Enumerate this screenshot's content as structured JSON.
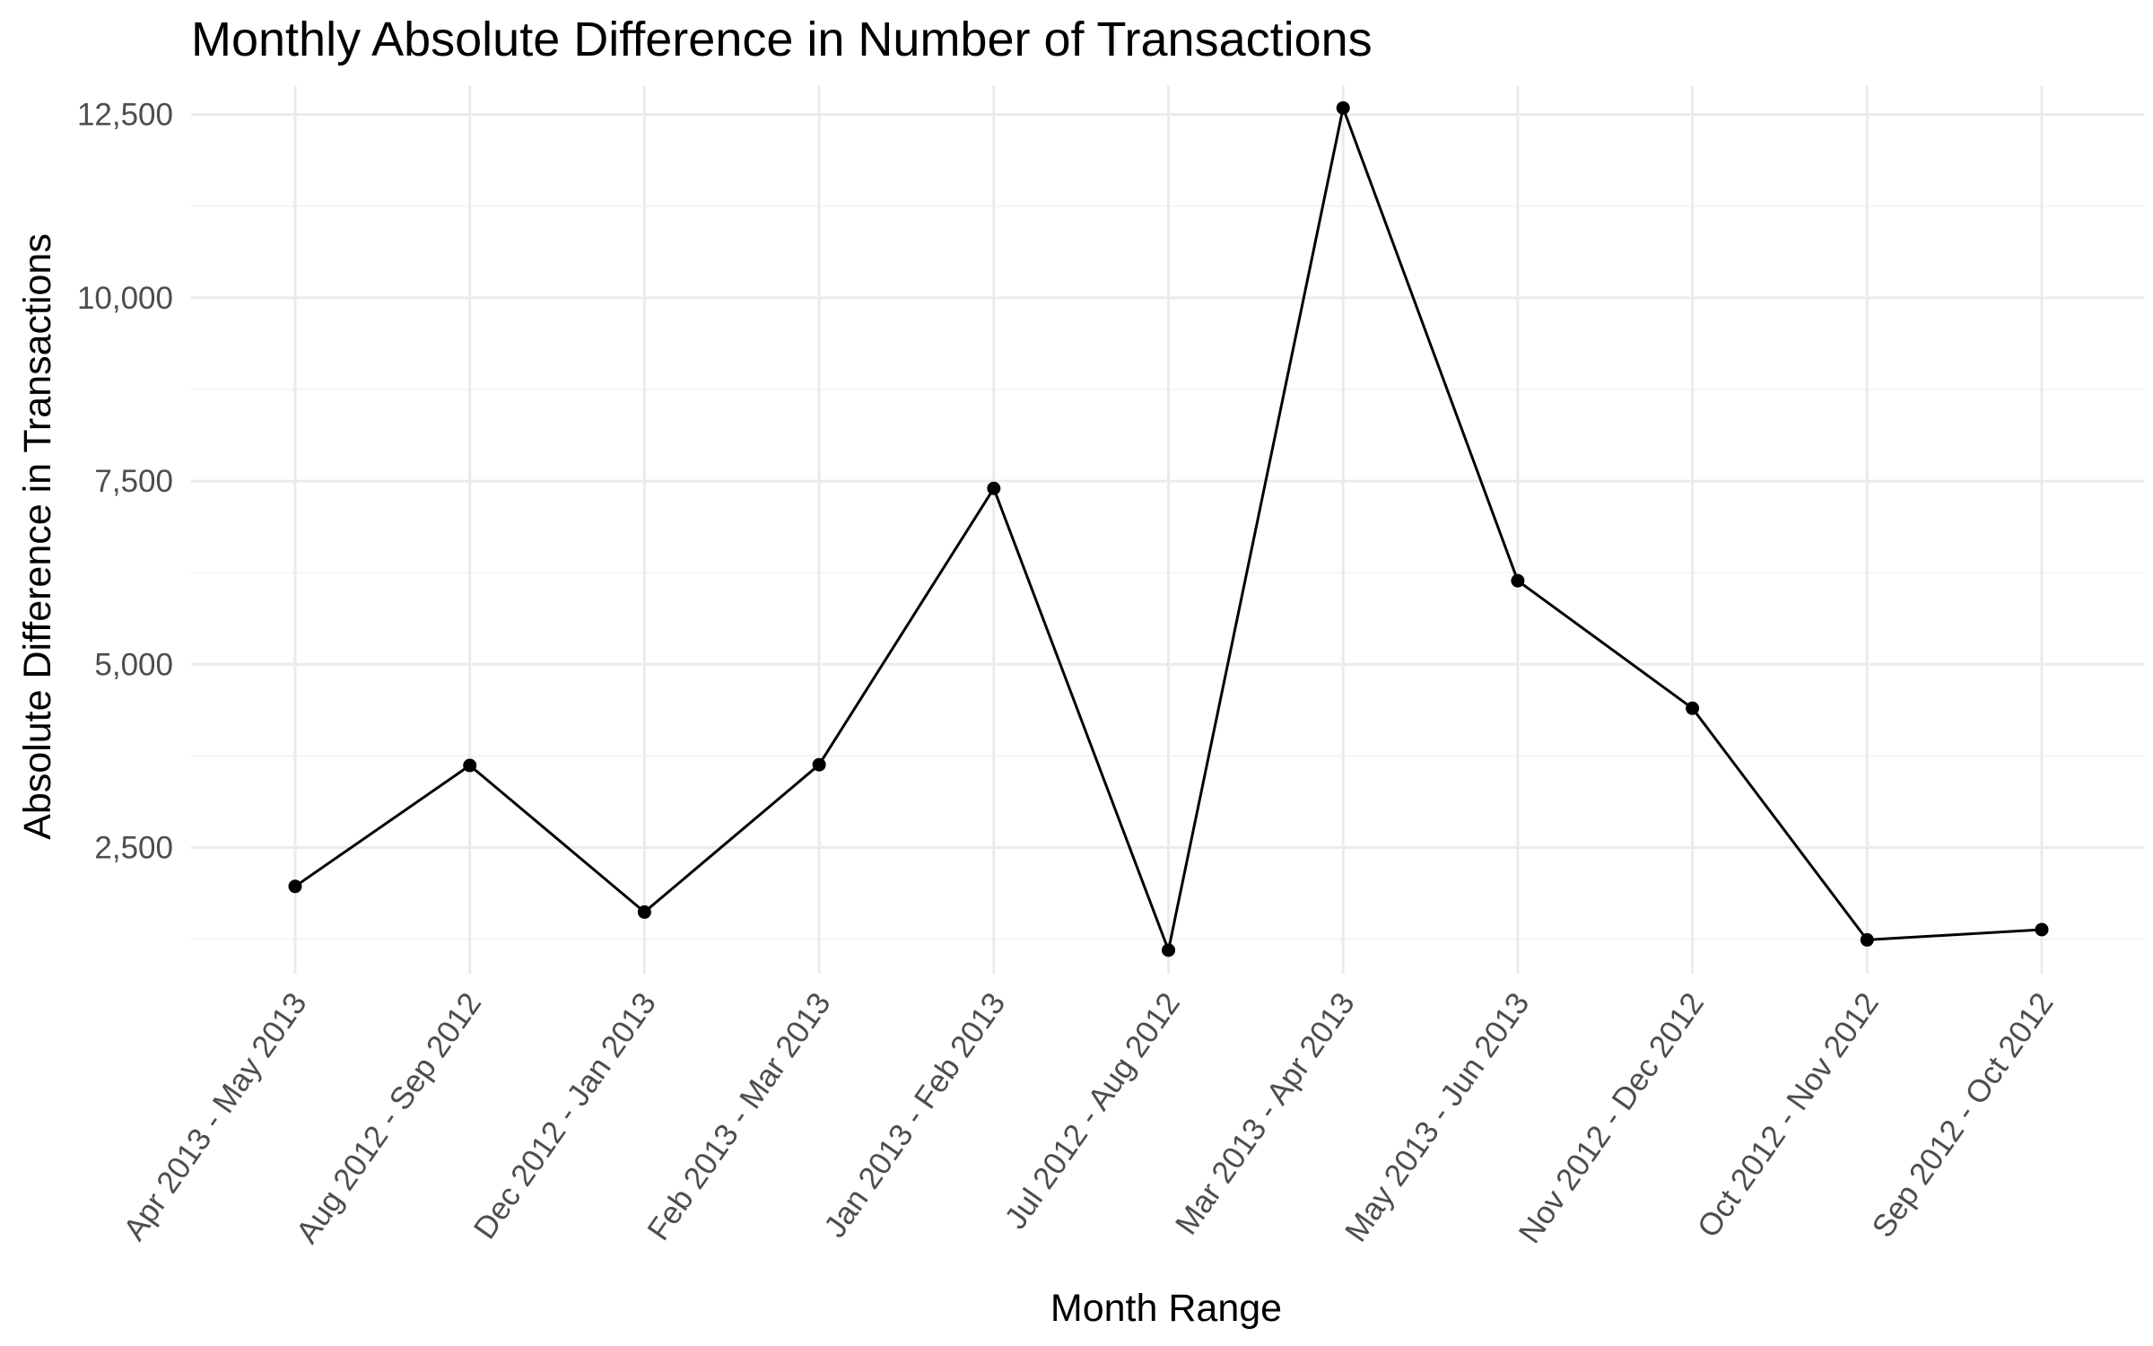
{
  "chart_data": {
    "type": "line",
    "title": "Monthly Absolute Difference in Number of Transactions",
    "xlabel": "Month Range",
    "ylabel": "Absolute Difference in Transactions",
    "categories": [
      "Apr 2013 - May 2013",
      "Aug 2012 - Sep 2012",
      "Dec 2012 - Jan 2013",
      "Feb 2013 - Mar 2013",
      "Jan 2013 - Feb 2013",
      "Jul 2012 - Aug 2012",
      "Mar 2013 - Apr 2013",
      "May 2013 - Jun 2013",
      "Nov 2012 - Dec 2012",
      "Oct 2012 - Nov 2012",
      "Sep 2012 - Oct 2012"
    ],
    "values": [
      1970,
      3620,
      1620,
      3630,
      7400,
      1100,
      12590,
      6140,
      4400,
      1240,
      1380
    ],
    "yticks": [
      2500,
      5000,
      7500,
      10000,
      12500
    ],
    "ytick_labels": [
      "2,500",
      "5,000",
      "7,500",
      "10,000",
      "12,500"
    ],
    "ylim": [
      780,
      12900
    ],
    "grid": true,
    "line_color": "#000000",
    "grid_color": "#ebebeb"
  }
}
